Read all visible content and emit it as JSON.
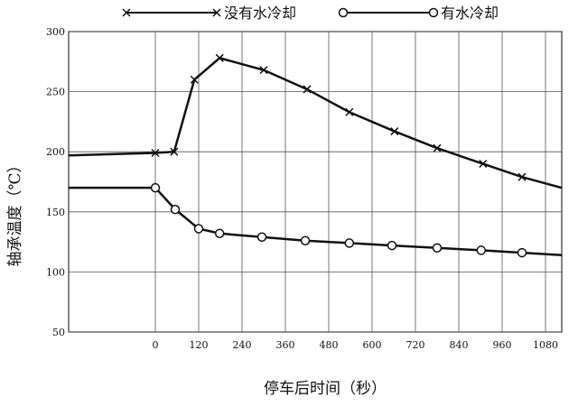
{
  "chart_data": {
    "type": "line",
    "x_label": "停车后时间（秒）",
    "y_label": "轴承温度（℃）",
    "xlim": [
      -240,
      1125
    ],
    "xticks": [
      0,
      120,
      240,
      360,
      480,
      600,
      720,
      840,
      960,
      1080
    ],
    "ylim": [
      50,
      300
    ],
    "yticks": [
      50,
      100,
      150,
      200,
      250,
      300
    ],
    "grid": true,
    "series": [
      {
        "name": "没有水冷却",
        "color": "#111111",
        "marker": "x",
        "x": [
          -240,
          0,
          52,
          108,
          178,
          300,
          420,
          537,
          662,
          780,
          907,
          1015,
          1125
        ],
        "values": [
          197,
          199,
          200,
          260,
          278,
          268,
          252,
          233,
          217,
          203,
          190,
          179,
          170
        ]
      },
      {
        "name": "有水冷却",
        "color": "#111111",
        "marker": "o",
        "x": [
          -240,
          0,
          55,
          120,
          178,
          295,
          415,
          537,
          655,
          780,
          902,
          1015,
          1125
        ],
        "values": [
          170,
          170,
          152,
          136,
          132,
          129,
          126,
          124,
          122,
          120,
          118,
          116,
          114
        ]
      }
    ]
  }
}
